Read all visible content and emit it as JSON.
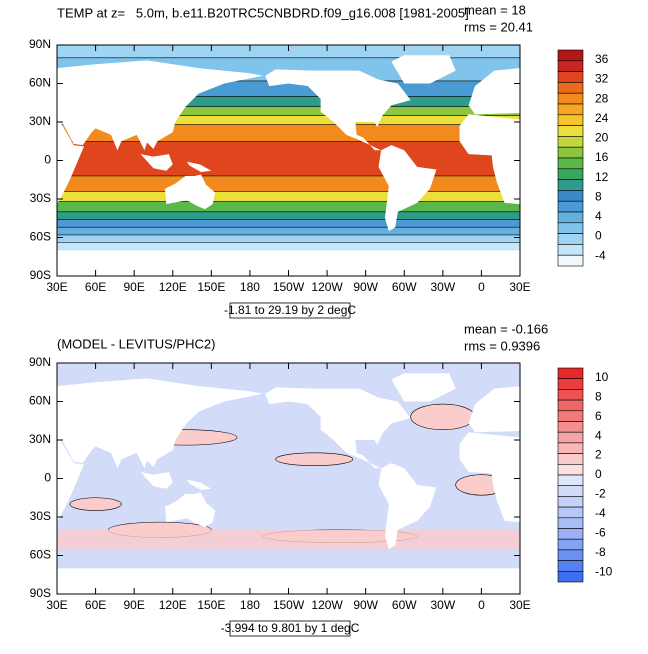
{
  "panels": [
    {
      "title": "TEMP at z=   5.0m, b.e11.B20TRC5CNBDRD.f09_g16.008 [1981-2005]",
      "mean": "mean = 18",
      "rms": "rms = 20.41",
      "contour_info": "-1.81 to 29.19 by 2 degC",
      "lat_labels": [
        "90N",
        "60N",
        "30N",
        "0",
        "30S",
        "60S",
        "90S"
      ],
      "lon_labels": [
        "30E",
        "60E",
        "90E",
        "120E",
        "150E",
        "180",
        "150W",
        "120W",
        "90W",
        "60W",
        "30W",
        "0",
        "30E"
      ],
      "colorbar": {
        "labels": [
          36,
          32,
          28,
          24,
          20,
          16,
          12,
          8,
          4,
          0,
          -4
        ],
        "colors": [
          "#b01818",
          "#c82424",
          "#e0461e",
          "#ec6a1c",
          "#f28a1e",
          "#f5a623",
          "#f6c42c",
          "#ecdf3a",
          "#c2d640",
          "#8cc63f",
          "#5ab84a",
          "#3aa760",
          "#2e9c8a",
          "#3b88c6",
          "#4a9ad4",
          "#62afe0",
          "#80c4ec",
          "#9fd5f3",
          "#c4e6f8",
          "#f0f8fc"
        ]
      }
    },
    {
      "title": "(MODEL - LEVITUS/PHC2)",
      "mean": "mean = -0.166",
      "rms": "rms = 0.9396",
      "contour_info": "-3.994 to 9.801 by 1 degC",
      "lat_labels": [
        "90N",
        "60N",
        "30N",
        "0",
        "30S",
        "60S",
        "90S"
      ],
      "lon_labels": [
        "30E",
        "60E",
        "90E",
        "120E",
        "150E",
        "180",
        "150W",
        "120W",
        "90W",
        "60W",
        "30W",
        "0",
        "30E"
      ],
      "colorbar": {
        "labels": [
          10,
          8,
          6,
          4,
          2,
          0,
          -2,
          -4,
          -6,
          -8,
          -10
        ],
        "colors": [
          "#e62828",
          "#ea3d3d",
          "#ec5252",
          "#ef6666",
          "#f17a7a",
          "#f48f8f",
          "#f6a3a3",
          "#f9b8b8",
          "#fbcccc",
          "#fde0e0",
          "#dfe6f9",
          "#d2dcf8",
          "#c5d2f7",
          "#b7c8f6",
          "#a9bdf6",
          "#9ab2f5",
          "#84a2f4",
          "#6d91f3",
          "#5680f2",
          "#3e6ff0"
        ]
      }
    }
  ]
}
